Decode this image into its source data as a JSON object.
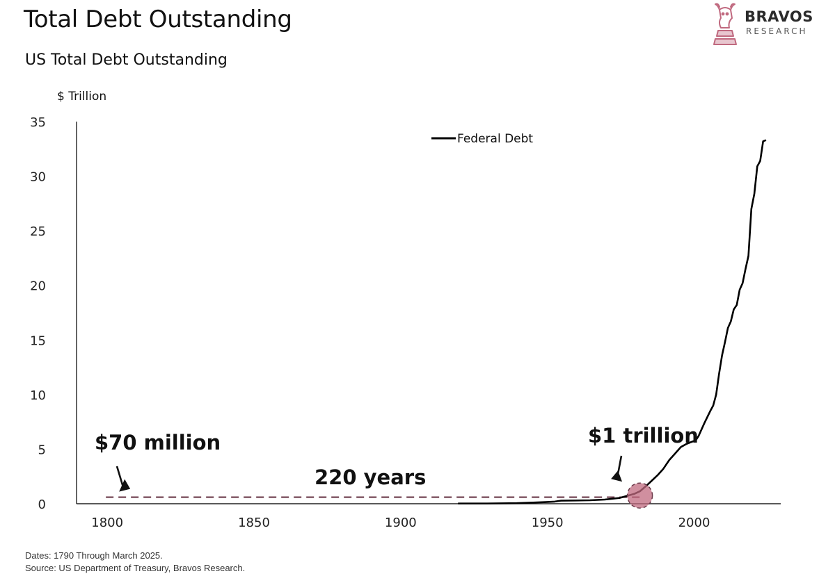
{
  "header": {
    "title": "Total Debt Outstanding",
    "subtitle": "US Total Debt Outstanding"
  },
  "logo": {
    "name": "BRAVOS",
    "tagline": "RESEARCH",
    "icon": "bull-chess-knight-icon",
    "accent_color": "#c0697f"
  },
  "footer": {
    "dates": "Dates: 1790 Through March 2025.",
    "source": "Source: US Department of Treasury, Bravos Research."
  },
  "chart_data": {
    "type": "line",
    "ylabel": "$ Trillion",
    "xlim": [
      1790,
      2030
    ],
    "ylim": [
      0,
      35
    ],
    "x_ticks": [
      1800,
      1850,
      1900,
      1950,
      2000
    ],
    "y_ticks": [
      0,
      5,
      10,
      15,
      20,
      25,
      30,
      35
    ],
    "grid": false,
    "legend": {
      "position": "top-center"
    },
    "series": [
      {
        "name": "Federal Debt",
        "color": "#000000",
        "x": [
          1920,
          1930,
          1940,
          1945,
          1950,
          1953,
          1955,
          1960,
          1965,
          1970,
          1975,
          1978,
          1980,
          1982,
          1984,
          1986,
          1988,
          1990,
          1992,
          1994,
          1996,
          1998,
          2000,
          2001,
          2002,
          2004,
          2006,
          2007,
          2008,
          2009,
          2010,
          2011,
          2012,
          2013,
          2014,
          2015,
          2016,
          2017,
          2018,
          2019,
          2020,
          2021,
          2022,
          2023,
          2024,
          2025
        ],
        "y": [
          0.02,
          0.02,
          0.05,
          0.1,
          0.15,
          0.2,
          0.28,
          0.3,
          0.32,
          0.38,
          0.53,
          0.75,
          0.9,
          1.14,
          1.6,
          2.1,
          2.6,
          3.2,
          4.0,
          4.6,
          5.2,
          5.5,
          5.7,
          5.8,
          6.2,
          7.4,
          8.5,
          9.0,
          10.0,
          11.9,
          13.6,
          14.8,
          16.1,
          16.7,
          17.8,
          18.2,
          19.6,
          20.2,
          21.5,
          22.7,
          27.0,
          28.4,
          30.9,
          31.4,
          33.2,
          33.3
        ]
      },
      {
        "name": "",
        "style": "dashed",
        "color": "#6b3a4a",
        "x": [
          1800,
          1982
        ],
        "y": [
          0.6,
          0.6
        ]
      }
    ],
    "highlight": {
      "x": 1982,
      "y": 0.75,
      "color": "#c0697f"
    },
    "annotations": [
      {
        "text": "$70 million",
        "arrow_to": [
          1800,
          0.6
        ]
      },
      {
        "text": "220 years"
      },
      {
        "text": "$1 trillion",
        "arrow_to": [
          1975,
          2.4
        ]
      }
    ]
  }
}
